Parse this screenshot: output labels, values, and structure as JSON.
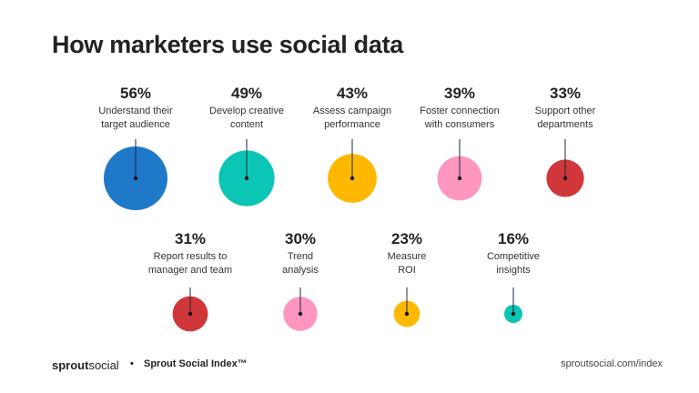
{
  "chart_data": {
    "type": "bubble",
    "title": "How marketers use social data",
    "items": [
      {
        "value": 56,
        "pct": "56%",
        "label1": "Understand their",
        "label2": "target audience",
        "color": "#1F78C8"
      },
      {
        "value": 49,
        "pct": "49%",
        "label1": "Develop creative",
        "label2": "content",
        "color": "#0BC5B5"
      },
      {
        "value": 43,
        "pct": "43%",
        "label1": "Assess campaign",
        "label2": "performance",
        "color": "#FFB800"
      },
      {
        "value": 39,
        "pct": "39%",
        "label1": "Foster connection",
        "label2": "with consumers",
        "color": "#FF96C0"
      },
      {
        "value": 33,
        "pct": "33%",
        "label1": "Support other",
        "label2": "departments",
        "color": "#D0373A"
      },
      {
        "value": 31,
        "pct": "31%",
        "label1": "Report results to",
        "label2": "manager and team",
        "color": "#D0373A"
      },
      {
        "value": 30,
        "pct": "30%",
        "label1": "Trend",
        "label2": "analysis",
        "color": "#FF96C0"
      },
      {
        "value": 23,
        "pct": "23%",
        "label1": "Measure",
        "label2": "ROI",
        "color": "#FFB800"
      },
      {
        "value": 16,
        "pct": "16%",
        "label1": "Competitive",
        "label2": "insights",
        "color": "#0BC5B5"
      }
    ]
  },
  "footer": {
    "logo_bold": "sprout",
    "logo_light": "social",
    "separator": "•",
    "index": "Sprout Social Index™",
    "url": "sproutsocial.com/index"
  }
}
